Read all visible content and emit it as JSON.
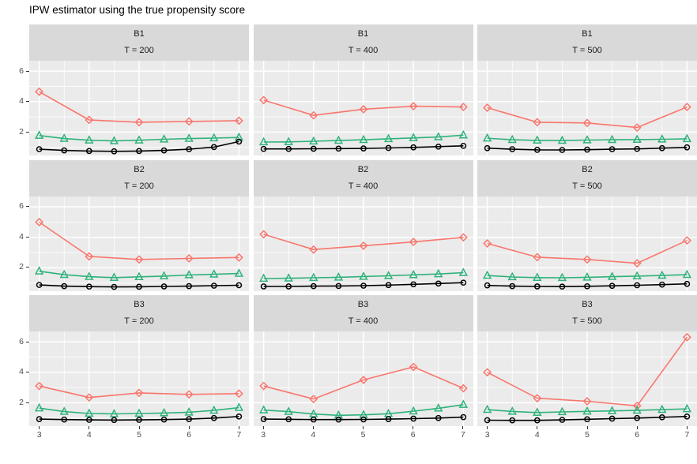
{
  "title": "IPW estimator using the true propensity score",
  "style": {
    "red": "#F8766D",
    "green": "#2FB27B",
    "black": "#000000",
    "panel_bg": "#EBEBEB",
    "strip_bg": "#D9D9D9",
    "grid": "#FFFFFF",
    "tick_text": "#4D4D4D"
  },
  "chart_data": {
    "type": "line",
    "title": "IPW estimator using the true propensity score",
    "xlabel": "",
    "ylabel": "",
    "legend": "none",
    "grid": "on",
    "facet_layout": {
      "rows": [
        "B1",
        "B2",
        "B3"
      ],
      "cols": [
        "T = 200",
        "T = 400",
        "T = 500"
      ]
    },
    "x_ticks": [
      3,
      4,
      5,
      6,
      7
    ],
    "y_ticks": [
      2,
      4,
      6
    ],
    "x_minor": [
      3.5,
      4.5,
      5.5,
      6.5
    ],
    "y_minor": [
      1,
      3,
      5
    ],
    "x_domain": [
      2.8,
      7.2
    ],
    "y_domain": [
      0.47,
      6.68
    ],
    "x_red": [
      3,
      4,
      5,
      6,
      7
    ],
    "x_fine": [
      3,
      3.5,
      4,
      4.5,
      5,
      5.5,
      6,
      6.5,
      7
    ],
    "series_meta": [
      {
        "id": "red-diamond-series",
        "color_key": "red",
        "marker": "diamond",
        "x_key": "x_red",
        "values_key": "red"
      },
      {
        "id": "green-triangle-series",
        "color_key": "green",
        "marker": "triangle",
        "x_key": "x_fine",
        "values_key": "green"
      },
      {
        "id": "black-circle-series",
        "color_key": "black",
        "marker": "circle",
        "x_key": "x_fine",
        "values_key": "black"
      }
    ],
    "panels": [
      {
        "b": "B1",
        "t": "T = 200",
        "red": [
          4.65,
          2.8,
          2.65,
          2.7,
          2.75
        ],
        "green": [
          1.78,
          1.58,
          1.47,
          1.42,
          1.47,
          1.53,
          1.58,
          1.61,
          1.65
        ],
        "black": [
          0.88,
          0.8,
          0.76,
          0.74,
          0.76,
          0.8,
          0.88,
          1.02,
          1.38
        ]
      },
      {
        "b": "B1",
        "t": "T = 400",
        "red": [
          4.1,
          3.1,
          3.5,
          3.7,
          3.65
        ],
        "green": [
          1.35,
          1.36,
          1.4,
          1.45,
          1.5,
          1.56,
          1.62,
          1.68,
          1.8
        ],
        "black": [
          0.9,
          0.9,
          0.91,
          0.92,
          0.93,
          0.96,
          1.0,
          1.05,
          1.1
        ]
      },
      {
        "b": "B1",
        "t": "T = 500",
        "red": [
          3.6,
          2.65,
          2.6,
          2.3,
          3.65
        ],
        "green": [
          1.6,
          1.5,
          1.46,
          1.45,
          1.48,
          1.5,
          1.51,
          1.53,
          1.56
        ],
        "black": [
          0.95,
          0.88,
          0.84,
          0.83,
          0.85,
          0.88,
          0.9,
          0.95,
          1.0
        ]
      },
      {
        "b": "B2",
        "t": "T = 200",
        "red": [
          5.0,
          2.75,
          2.55,
          2.62,
          2.68
        ],
        "green": [
          1.78,
          1.55,
          1.42,
          1.36,
          1.41,
          1.46,
          1.53,
          1.58,
          1.63
        ],
        "black": [
          0.88,
          0.8,
          0.77,
          0.75,
          0.76,
          0.78,
          0.8,
          0.83,
          0.86
        ]
      },
      {
        "b": "B2",
        "t": "T = 400",
        "red": [
          4.2,
          3.2,
          3.45,
          3.7,
          4.0
        ],
        "green": [
          1.3,
          1.32,
          1.35,
          1.38,
          1.43,
          1.48,
          1.54,
          1.6,
          1.68
        ],
        "black": [
          0.78,
          0.78,
          0.8,
          0.81,
          0.83,
          0.87,
          0.92,
          0.97,
          1.03
        ]
      },
      {
        "b": "B2",
        "t": "T = 500",
        "red": [
          3.6,
          2.7,
          2.55,
          2.3,
          3.8
        ],
        "green": [
          1.5,
          1.4,
          1.36,
          1.35,
          1.38,
          1.42,
          1.46,
          1.5,
          1.55
        ],
        "black": [
          0.85,
          0.8,
          0.78,
          0.77,
          0.79,
          0.82,
          0.86,
          0.9,
          0.95
        ]
      },
      {
        "b": "B3",
        "t": "T = 200",
        "red": [
          3.1,
          2.35,
          2.65,
          2.55,
          2.6
        ],
        "green": [
          1.65,
          1.42,
          1.3,
          1.27,
          1.3,
          1.33,
          1.38,
          1.5,
          1.68
        ],
        "black": [
          0.93,
          0.9,
          0.88,
          0.87,
          0.88,
          0.9,
          0.93,
          1.0,
          1.1
        ]
      },
      {
        "b": "B3",
        "t": "T = 400",
        "red": [
          3.1,
          2.25,
          3.5,
          4.35,
          2.95
        ],
        "green": [
          1.52,
          1.42,
          1.26,
          1.18,
          1.21,
          1.28,
          1.45,
          1.64,
          1.88
        ],
        "black": [
          0.93,
          0.92,
          0.9,
          0.9,
          0.91,
          0.93,
          0.96,
          1.0,
          1.06
        ]
      },
      {
        "b": "B3",
        "t": "T = 500",
        "red": [
          4.0,
          2.3,
          2.1,
          1.8,
          6.3
        ],
        "green": [
          1.55,
          1.43,
          1.36,
          1.4,
          1.44,
          1.47,
          1.5,
          1.55,
          1.6
        ],
        "black": [
          0.86,
          0.85,
          0.85,
          0.88,
          0.92,
          0.96,
          1.0,
          1.05,
          1.1
        ]
      }
    ]
  }
}
